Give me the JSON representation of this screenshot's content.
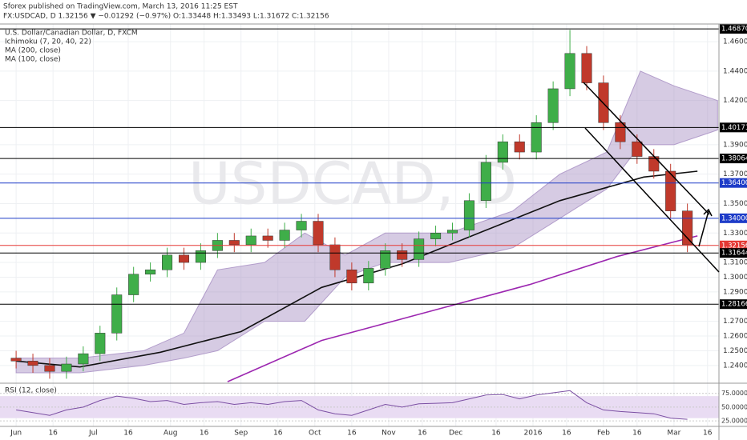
{
  "header": {
    "publisher": "Sforex published on TradingView.com, March 13, 2016 11:25 EST",
    "quote": "FX:USDCAD, D 1.32156 ▼ −0.01292 (−0.97%) O:1.33448 H:1.33493 L:1.31672 C:1.32156"
  },
  "chart_data": {
    "type": "candlestick",
    "title": "U.S. Dollar/Canadian Dollar, D, FXCM",
    "watermark": "USDCAD, D",
    "up_color": "#3fae49",
    "down_color": "#c0392b",
    "x": [
      0,
      5,
      10,
      15,
      20,
      25,
      30,
      35,
      40,
      45,
      50,
      55,
      60,
      65,
      70,
      75,
      80,
      85,
      90,
      95,
      100,
      105,
      110,
      115,
      120,
      125,
      130,
      135,
      140,
      145,
      150,
      155,
      160,
      165,
      170,
      175,
      180,
      185,
      190,
      195,
      200
    ],
    "open": [
      1.245,
      1.243,
      1.24,
      1.236,
      1.241,
      1.248,
      1.262,
      1.288,
      1.302,
      1.305,
      1.315,
      1.31,
      1.318,
      1.325,
      1.322,
      1.328,
      1.325,
      1.332,
      1.338,
      1.322,
      1.305,
      1.296,
      1.306,
      1.318,
      1.312,
      1.326,
      1.33,
      1.332,
      1.352,
      1.378,
      1.392,
      1.385,
      1.405,
      1.428,
      1.452,
      1.432,
      1.405,
      1.392,
      1.382,
      1.372,
      1.345
    ],
    "high": [
      1.25,
      1.248,
      1.245,
      1.246,
      1.253,
      1.267,
      1.293,
      1.307,
      1.31,
      1.32,
      1.32,
      1.323,
      1.33,
      1.33,
      1.333,
      1.333,
      1.337,
      1.343,
      1.343,
      1.327,
      1.31,
      1.311,
      1.323,
      1.323,
      1.331,
      1.335,
      1.337,
      1.357,
      1.383,
      1.397,
      1.397,
      1.41,
      1.433,
      1.468,
      1.457,
      1.437,
      1.41,
      1.397,
      1.387,
      1.377,
      1.35
    ],
    "low": [
      1.238,
      1.235,
      1.231,
      1.231,
      1.236,
      1.243,
      1.257,
      1.283,
      1.297,
      1.3,
      1.305,
      1.305,
      1.313,
      1.317,
      1.317,
      1.32,
      1.32,
      1.327,
      1.317,
      1.3,
      1.291,
      1.291,
      1.301,
      1.307,
      1.307,
      1.321,
      1.325,
      1.327,
      1.347,
      1.373,
      1.38,
      1.38,
      1.4,
      1.423,
      1.427,
      1.4,
      1.387,
      1.377,
      1.367,
      1.34,
      1.317
    ],
    "close": [
      1.243,
      1.24,
      1.236,
      1.241,
      1.248,
      1.262,
      1.288,
      1.302,
      1.305,
      1.315,
      1.31,
      1.318,
      1.325,
      1.322,
      1.328,
      1.325,
      1.332,
      1.338,
      1.322,
      1.305,
      1.296,
      1.306,
      1.318,
      1.312,
      1.326,
      1.33,
      1.332,
      1.352,
      1.378,
      1.392,
      1.385,
      1.405,
      1.428,
      1.452,
      1.432,
      1.405,
      1.392,
      1.382,
      1.372,
      1.345,
      1.322
    ],
    "xlim": [
      -4.8,
      209.4
    ],
    "ylim": [
      1.2285,
      1.472
    ],
    "grid": true,
    "xticks": [
      {
        "value": 0,
        "label": "Jun"
      },
      {
        "value": 11,
        "label": "16"
      },
      {
        "value": 23,
        "label": "Jul"
      },
      {
        "value": 33.4,
        "label": "16"
      },
      {
        "value": 46,
        "label": "Aug"
      },
      {
        "value": 56,
        "label": "16"
      },
      {
        "value": 67,
        "label": "Sep"
      },
      {
        "value": 78,
        "label": "16"
      },
      {
        "value": 89,
        "label": "Oct"
      },
      {
        "value": 100,
        "label": "16"
      },
      {
        "value": 111,
        "label": "Nov"
      },
      {
        "value": 121,
        "label": "16"
      },
      {
        "value": 131,
        "label": "Dec"
      },
      {
        "value": 143,
        "label": "16"
      },
      {
        "value": 154,
        "label": "2016"
      },
      {
        "value": 164,
        "label": "16"
      },
      {
        "value": 175,
        "label": "Feb"
      },
      {
        "value": 185,
        "label": "16"
      },
      {
        "value": 196,
        "label": "Mar"
      },
      {
        "value": 206,
        "label": "16"
      }
    ],
    "yticks": [
      {
        "value": 1.24,
        "label": "1.24000"
      },
      {
        "value": 1.25,
        "label": "1.25000"
      },
      {
        "value": 1.26,
        "label": "1.26000"
      },
      {
        "value": 1.27,
        "label": "1.27000"
      },
      {
        "value": 1.29,
        "label": "1.29000"
      },
      {
        "value": 1.3,
        "label": "1.30000"
      },
      {
        "value": 1.31,
        "label": "1.31000"
      },
      {
        "value": 1.33,
        "label": "1.33000"
      },
      {
        "value": 1.35,
        "label": "1.35000"
      },
      {
        "value": 1.37,
        "label": "1.37000"
      },
      {
        "value": 1.39,
        "label": "1.39000"
      },
      {
        "value": 1.42,
        "label": "1.42000"
      },
      {
        "value": 1.44,
        "label": "1.44000"
      },
      {
        "value": 1.46,
        "label": "1.46000"
      }
    ],
    "levels": [
      {
        "value": 1.4687,
        "label": "1.46870",
        "color": "#000000"
      },
      {
        "value": 1.40171,
        "label": "1.40171",
        "color": "#000000"
      },
      {
        "value": 1.38064,
        "label": "1.38064",
        "color": "#000000"
      },
      {
        "value": 1.364,
        "label": "1.36400",
        "color": "#1e3cc8"
      },
      {
        "value": 1.34,
        "label": "1.34000",
        "color": "#1e3cc8"
      },
      {
        "value": 1.32156,
        "label": "1.32156",
        "color": "#e53935"
      },
      {
        "value": 1.31644,
        "label": "1.31644",
        "color": "#000000"
      },
      {
        "value": 1.28166,
        "label": "1.28166",
        "color": "#000000"
      }
    ],
    "cloud": {
      "name": "Ichimoku (7, 20, 40, 22)",
      "color": "#a58cc2",
      "x": [
        0,
        19,
        38,
        50,
        60,
        74,
        86,
        98,
        110,
        129,
        148,
        162,
        176,
        186,
        196,
        209
      ],
      "upper": [
        1.245,
        1.245,
        1.25,
        1.262,
        1.305,
        1.31,
        1.33,
        1.315,
        1.33,
        1.33,
        1.345,
        1.37,
        1.385,
        1.44,
        1.43,
        1.42
      ],
      "lower": [
        1.235,
        1.235,
        1.24,
        1.245,
        1.25,
        1.27,
        1.27,
        1.3,
        1.31,
        1.31,
        1.32,
        1.34,
        1.36,
        1.39,
        1.39,
        1.4
      ]
    },
    "series": [
      {
        "name": "MA (200, close)",
        "color": "#9c27b0",
        "x": [
          63,
          91,
          122,
          153,
          179,
          203
        ],
        "values": [
          1.229,
          1.257,
          1.276,
          1.295,
          1.314,
          1.328
        ]
      },
      {
        "name": "MA (100, close)",
        "color": "#111111",
        "x": [
          0,
          19,
          43,
          67,
          91,
          115,
          139,
          162,
          187,
          203
        ],
        "values": [
          1.243,
          1.239,
          1.249,
          1.263,
          1.293,
          1.309,
          1.331,
          1.352,
          1.368,
          1.372
        ]
      }
    ],
    "rsi": {
      "title": "RSI (12, close)",
      "color": "#7b4fa3",
      "values": [
        45,
        40,
        35,
        45,
        50,
        62,
        70,
        66,
        60,
        62,
        55,
        58,
        60,
        55,
        58,
        55,
        60,
        62,
        45,
        38,
        35,
        45,
        55,
        50,
        56,
        57,
        58,
        65,
        72,
        73,
        65,
        72,
        76,
        80,
        58,
        45,
        42,
        40,
        38,
        30,
        28
      ],
      "ylim": [
        15,
        92
      ],
      "band": [
        30,
        70
      ],
      "yticks": [
        {
          "value": 75,
          "label": "75.0000"
        },
        {
          "value": 50,
          "label": "50.0000"
        },
        {
          "value": 25,
          "label": "25.0000"
        }
      ]
    }
  }
}
